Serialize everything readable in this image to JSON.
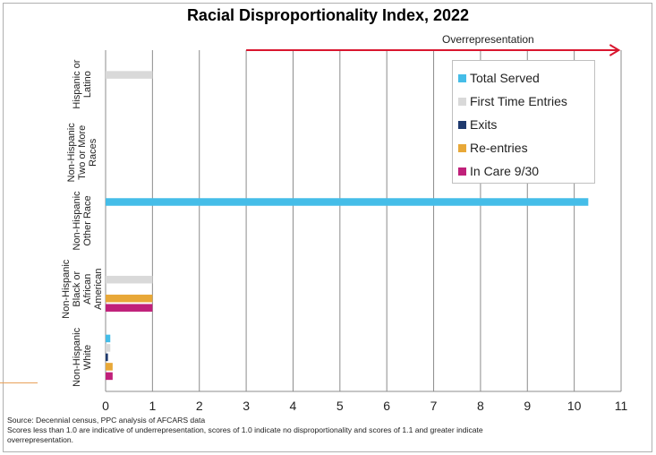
{
  "chart_data": {
    "type": "bar",
    "orientation": "horizontal",
    "title": "Racial Disproportionality Index, 2022",
    "annotation": "Overrepresentation",
    "categories": [
      [
        "Hispanic or",
        "Latino"
      ],
      [
        "Non-Hispanic",
        "Two or More",
        "Races"
      ],
      [
        "Non-Hispanic",
        "Other Race"
      ],
      [
        "Non-Hispanic",
        "Black or",
        "African",
        "American"
      ],
      [
        "Non-Hispanic",
        "White"
      ]
    ],
    "series": [
      {
        "name": "Total Served",
        "color": "#45bde8",
        "values": [
          0,
          0,
          10.3,
          0,
          0.1
        ]
      },
      {
        "name": "First Time Entries",
        "color": "#d9d9d9",
        "values": [
          1.0,
          0,
          0,
          1.0,
          0.1
        ]
      },
      {
        "name": "Exits",
        "color": "#1f3a6e",
        "values": [
          0,
          0,
          0,
          0,
          0.05
        ]
      },
      {
        "name": "Re-entries",
        "color": "#e8a838",
        "values": [
          0,
          0,
          0,
          1.0,
          0.15
        ]
      },
      {
        "name": "In Care 9/30",
        "color": "#c0207a",
        "values": [
          0,
          0,
          0,
          1.0,
          0.15
        ]
      }
    ],
    "xlim": [
      0,
      11
    ],
    "xticks": [
      "0",
      "1",
      "2",
      "3",
      "4",
      "5",
      "6",
      "7",
      "8",
      "9",
      "10",
      "11"
    ],
    "grid": true,
    "legend": "top-right"
  },
  "footnotes": [
    "Source: Decennial census, PPC analysis of AFCARS data",
    "Scores less than 1.0 are indicative of underrepresentation, scores of 1.0 indicate no disproportionality and scores of 1.1 and greater indicate",
    "overrepresentation."
  ]
}
